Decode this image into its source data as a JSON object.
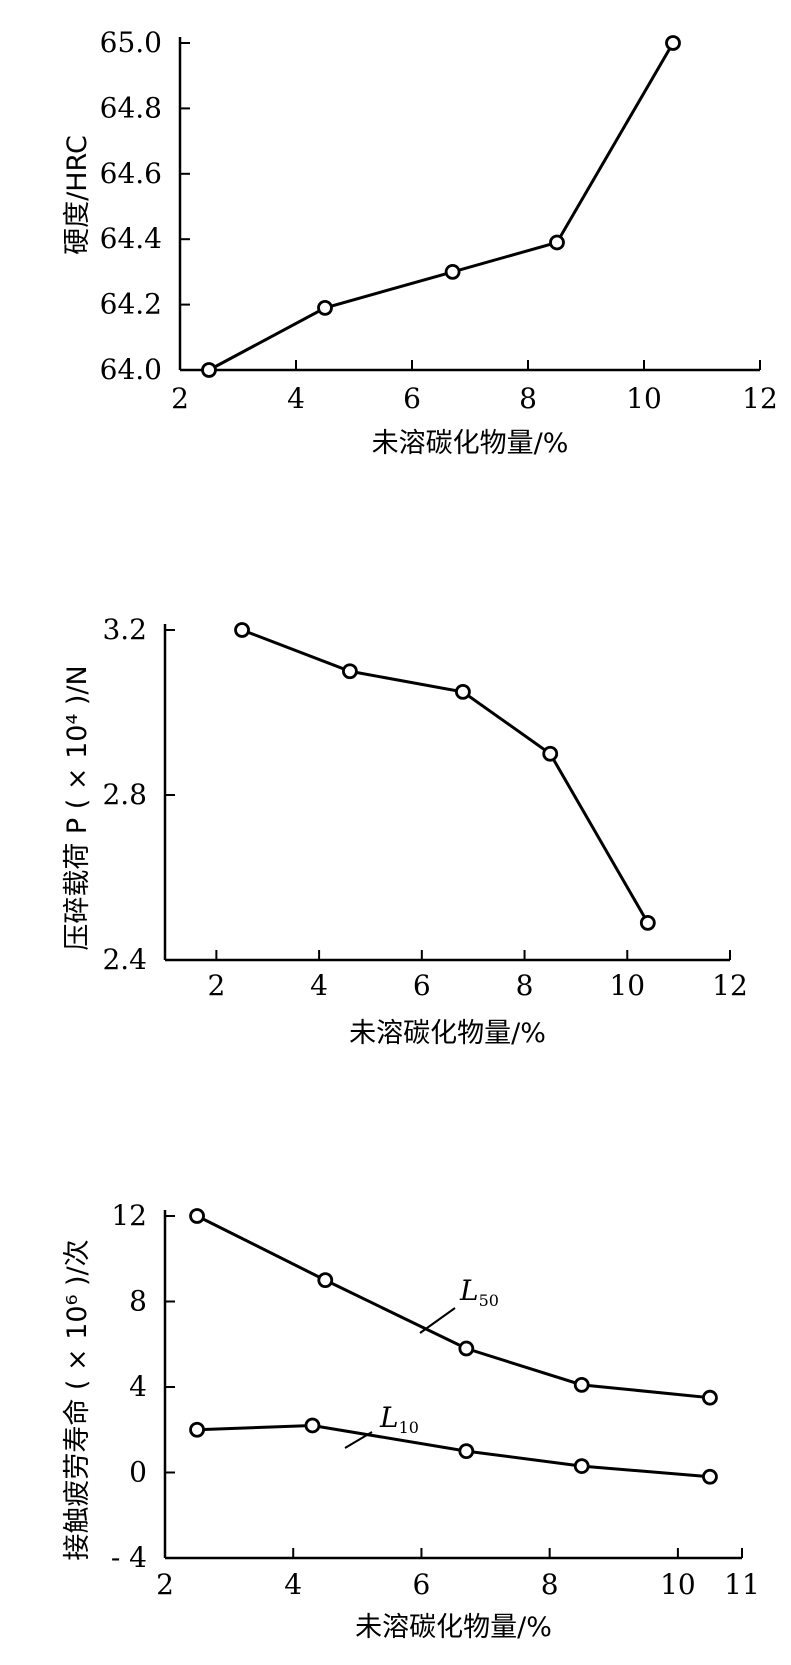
{
  "chart_data": [
    {
      "type": "line",
      "title": "",
      "xlabel": "未溶碳化物量/%",
      "ylabel": "硬度/HRC",
      "xlim": [
        2,
        12
      ],
      "ylim": [
        64.0,
        65.0
      ],
      "x_ticks": [
        "2",
        "4",
        "6",
        "8",
        "10",
        "12"
      ],
      "y_ticks": [
        "64.0",
        "64.2",
        "64.4",
        "64.6",
        "64.8",
        "65.0"
      ],
      "series": [
        {
          "x": [
            2.5,
            4.5,
            6.7,
            8.5,
            10.5
          ],
          "values": [
            64.0,
            64.19,
            64.3,
            64.39,
            65.0
          ]
        }
      ]
    },
    {
      "type": "line",
      "title": "",
      "xlabel": "未溶碳化物量/%",
      "ylabel": "压碎载荷 P ( × 10⁴ )/N",
      "xlim": [
        1,
        12
      ],
      "ylim": [
        2.4,
        3.2
      ],
      "x_ticks": [
        "2",
        "4",
        "6",
        "8",
        "10",
        "12"
      ],
      "y_ticks": [
        "2.4",
        "2.8",
        "3.2"
      ],
      "series": [
        {
          "x": [
            2.5,
            4.6,
            6.8,
            8.5,
            10.4
          ],
          "values": [
            3.2,
            3.1,
            3.05,
            2.9,
            2.49
          ]
        }
      ]
    },
    {
      "type": "line",
      "title": "",
      "xlabel": "未溶碳化物量/%",
      "ylabel": "接触疲劳寿命 ( × 10⁶ )/次",
      "xlim": [
        2,
        11
      ],
      "ylim": [
        -4,
        12
      ],
      "x_ticks": [
        "2",
        "4",
        "6",
        "8",
        "10",
        "11"
      ],
      "y_ticks": [
        "- 4",
        "0",
        "4",
        "8",
        "12"
      ],
      "series": [
        {
          "name": "L50",
          "x": [
            2.5,
            4.5,
            6.7,
            8.5,
            10.5
          ],
          "values": [
            12.0,
            9.0,
            5.8,
            4.1,
            3.5
          ]
        },
        {
          "name": "L10",
          "x": [
            2.5,
            4.3,
            6.7,
            8.5,
            10.5
          ],
          "values": [
            2.0,
            2.2,
            1.0,
            0.3,
            -0.2
          ]
        }
      ]
    }
  ]
}
